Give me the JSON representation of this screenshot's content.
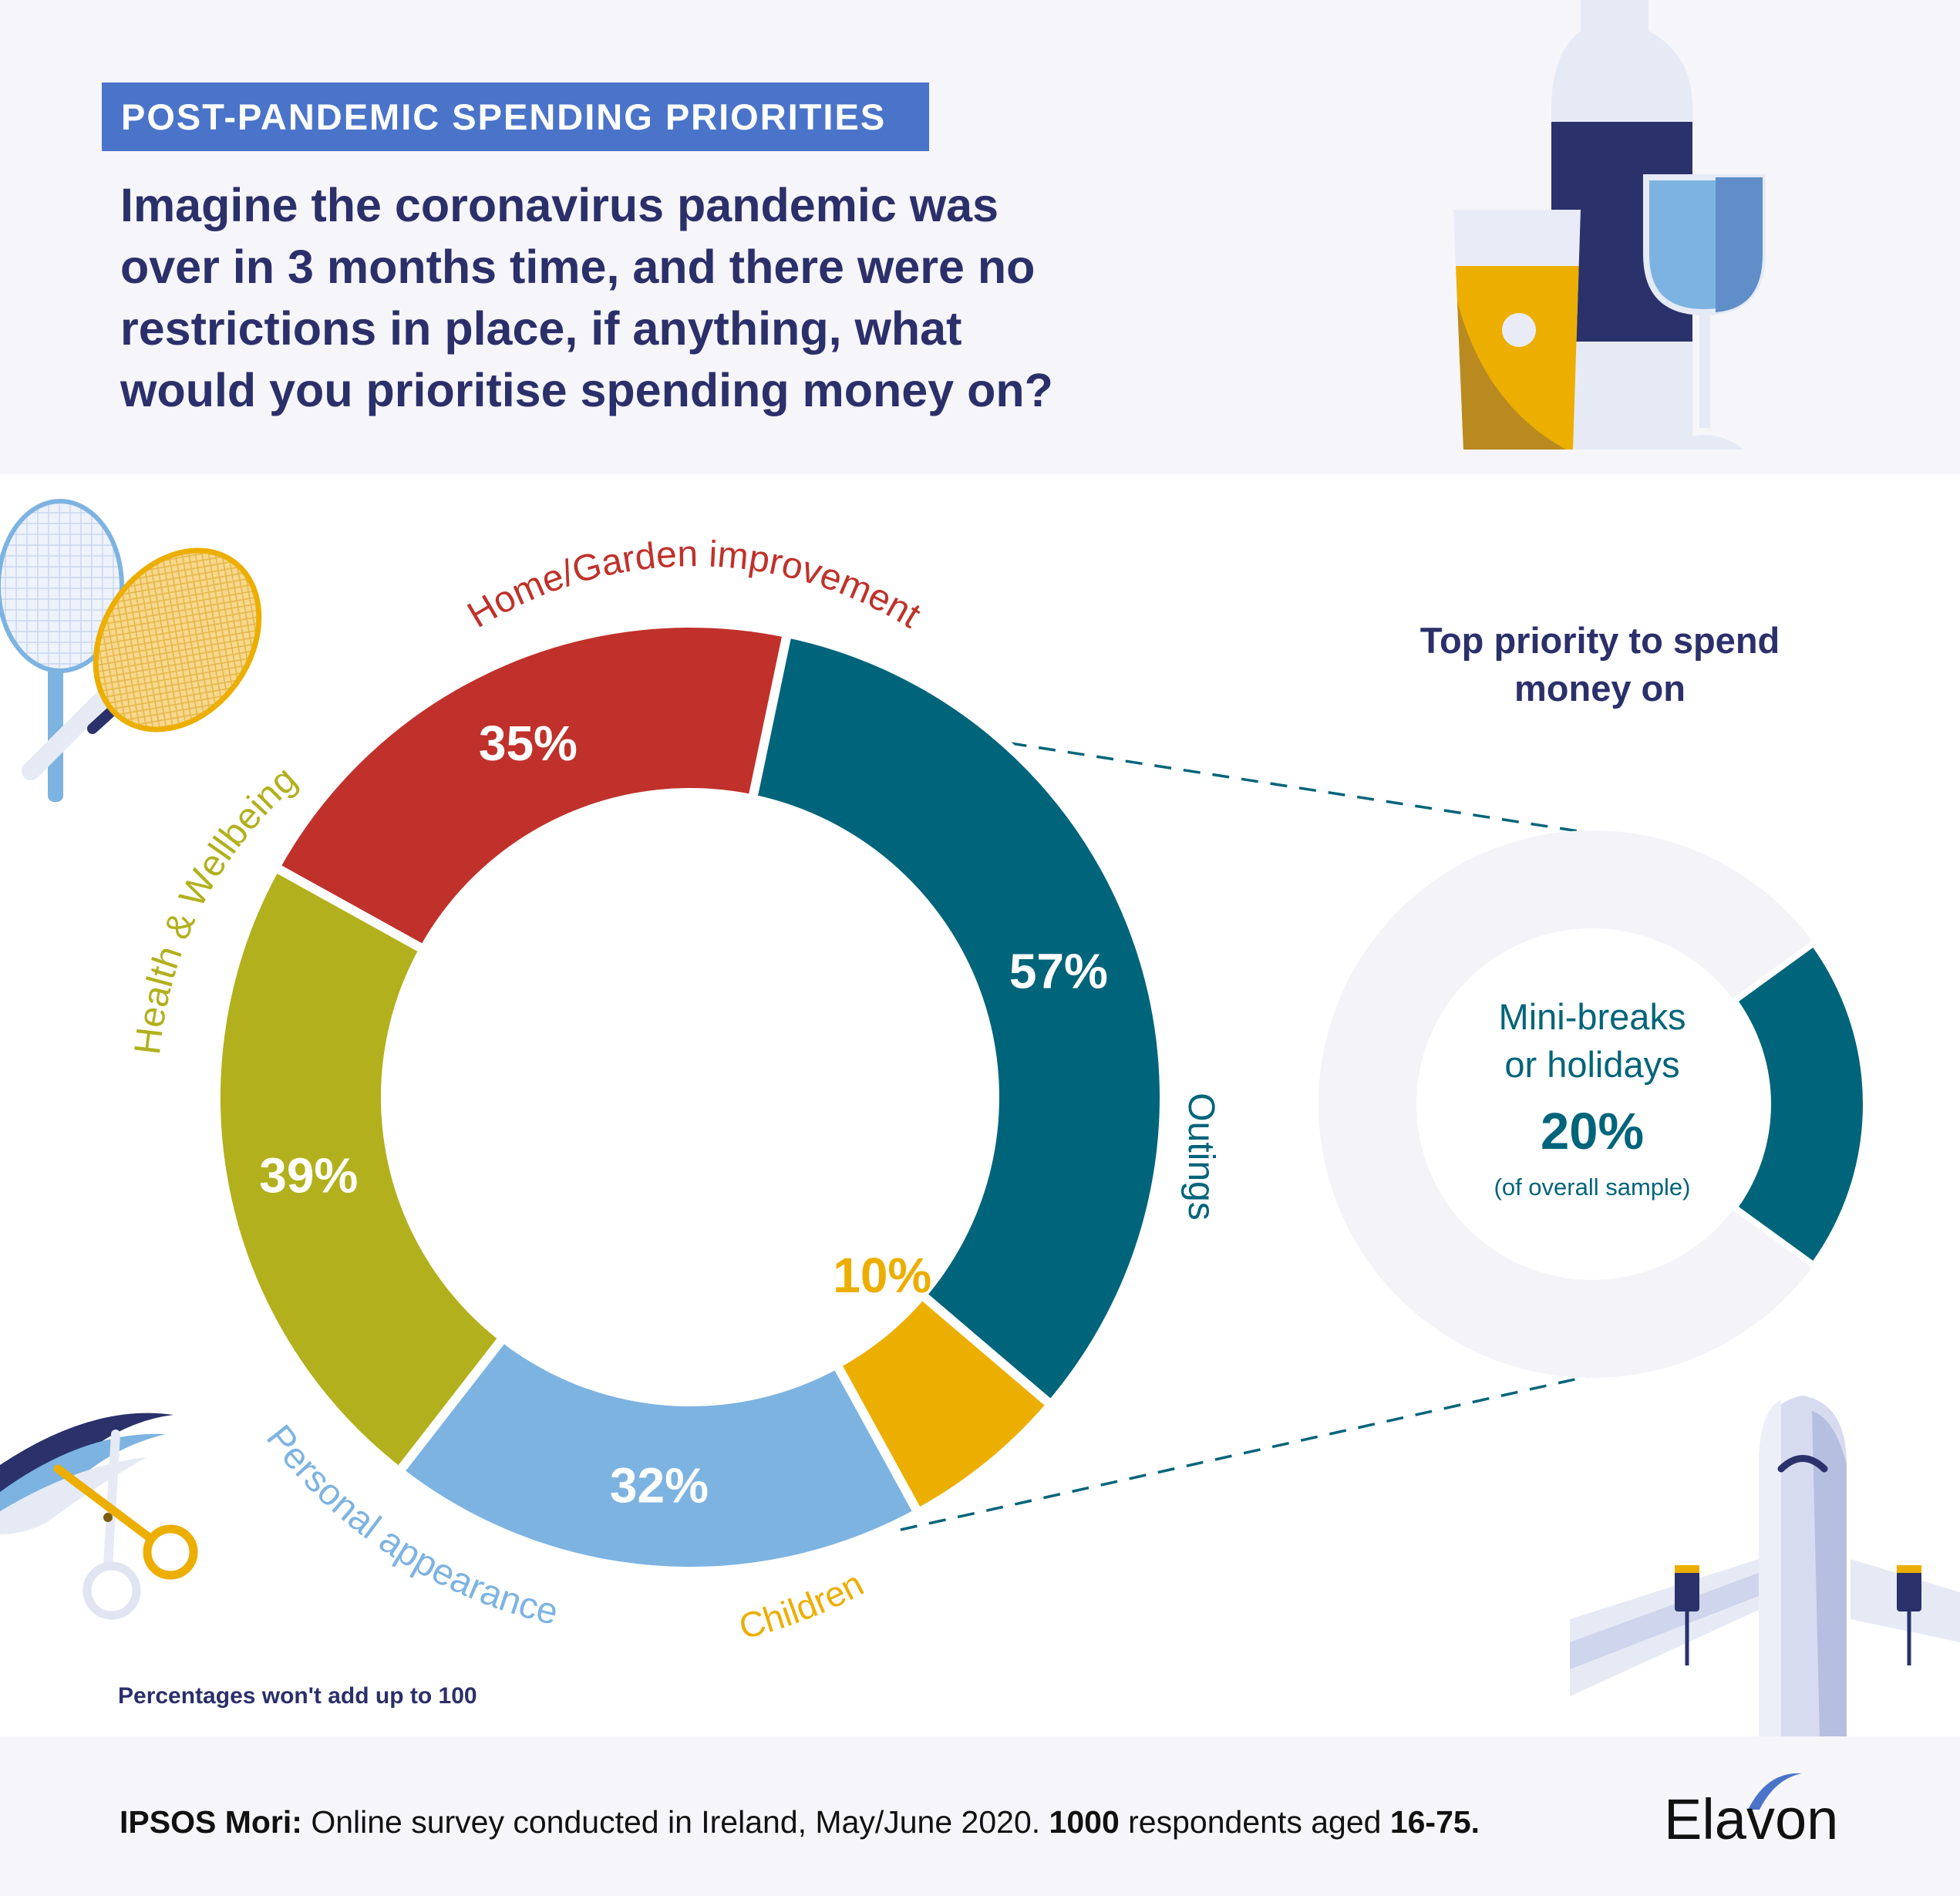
{
  "header": {
    "tag": "POST-PANDEMIC SPENDING PRIORITIES",
    "question_lines": [
      "Imagine the coronavirus pandemic was",
      "over in 3 months time, and there were no",
      "restrictions in place, if anything, what",
      "would you prioritise spending money on?"
    ]
  },
  "chart_data": {
    "type": "pie",
    "variant": "donut",
    "categories": [
      "Home/Garden improvement",
      "Outings",
      "Children",
      "Personal appearance",
      "Health & Wellbeing"
    ],
    "values": [
      35,
      57,
      10,
      32,
      39
    ],
    "value_labels": [
      "35%",
      "57%",
      "10%",
      "32%",
      "39%"
    ],
    "colors": [
      "#c0312b",
      "#00647a",
      "#ecae00",
      "#7db3e1",
      "#b2b01c"
    ],
    "label_colors": [
      "#c0312b",
      "#00647a",
      "#ecae00",
      "#7db3e1",
      "#b2b01c"
    ]
  },
  "side_panel": {
    "title": "Top priority to spend money on",
    "highlight_label_lines": [
      "Mini-breaks",
      "or holidays"
    ],
    "highlight_value": "20%",
    "highlight_note": "(of overall sample)",
    "highlight_fraction": 0.2,
    "highlight_color": "#00647a",
    "ring_color": "#f4f3f8"
  },
  "footnote": "Percentages won't add up to 100",
  "source": {
    "org": "IPSOS Mori:",
    "text1": " Online survey conducted in Ireland, May/June 2020. ",
    "count": "1000",
    "text2": " respondents aged ",
    "ages": "16-75."
  },
  "brand": "Elavon",
  "colors": {
    "navy": "#2b2f6a",
    "tag_blue": "#4a74c9",
    "band": "#f6f5f9"
  },
  "icons": [
    "bottle-icon",
    "beer-glass-icon",
    "wine-glass-icon",
    "tennis-rackets-icon",
    "scissors-icon",
    "airplane-icon"
  ]
}
